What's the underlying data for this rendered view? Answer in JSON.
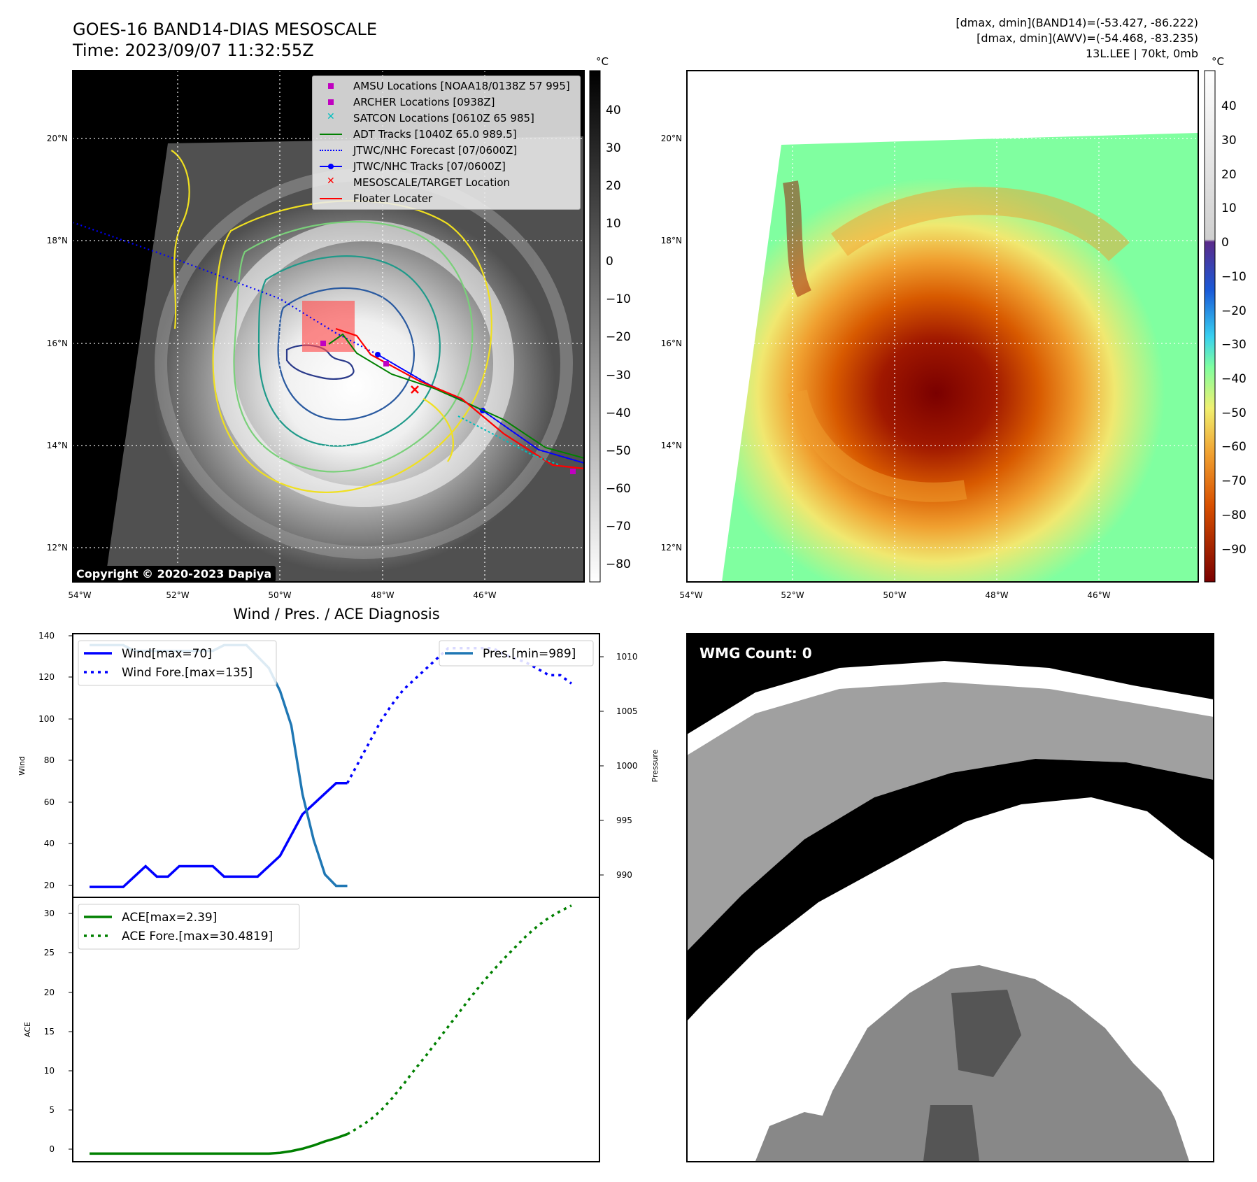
{
  "header": {
    "title_line1": "GOES-16 BAND14-DIAS MESOSCALE",
    "title_line2": "Time: 2023/09/07 11:32:55Z",
    "dmax_band14": "[dmax, dmin](BAND14)=(-53.427, -86.222)",
    "dmax_awv": "[dmax, dmin](AWV)=(-54.468, -83.235)",
    "storm_info": "13L.LEE | 70kt, 0mb"
  },
  "colors": {
    "wind": "#0000ff",
    "pressure": "#1f77b4",
    "ace": "#008000",
    "amsu": "#c000c0",
    "archer": "#c000c0",
    "satcon": "#00bfbf",
    "adt": "#008000",
    "jtwc": "#0000ff",
    "target": "#ff0000",
    "floater": "#ff0000"
  },
  "map_left": {
    "legend": [
      {
        "label": "AMSU Locations [NOAA18/0138Z 57 995]",
        "symbol": "square",
        "color": "#c000c0"
      },
      {
        "label": "ARCHER Locations [0938Z]",
        "symbol": "square",
        "color": "#c000c0"
      },
      {
        "label": "SATCON Locations [0610Z 65 985]",
        "symbol": "x",
        "color": "#00bfbf"
      },
      {
        "label": "ADT Tracks [1040Z 65.0 989.5]",
        "symbol": "line",
        "color": "#008000"
      },
      {
        "label": "JTWC/NHC Forecast [07/0600Z]",
        "symbol": "dotted",
        "color": "#0000ff"
      },
      {
        "label": "JTWC/NHC Tracks [07/0600Z]",
        "symbol": "line-dot",
        "color": "#0000ff"
      },
      {
        "label": "MESOSCALE/TARGET Location",
        "symbol": "x",
        "color": "#ff0000"
      },
      {
        "label": "Floater Locater",
        "symbol": "line",
        "color": "#ff0000"
      }
    ],
    "copyright": "Copyright © 2020-2023 Dapiya",
    "colorbar_unit": "°C",
    "colorbar_ticks": [
      "40",
      "30",
      "20",
      "10",
      "0",
      "−10",
      "−20",
      "−30",
      "−40",
      "−50",
      "−60",
      "−70",
      "−80"
    ],
    "lat_labels": [
      "20°N",
      "18°N",
      "16°N",
      "14°N",
      "12°N"
    ],
    "lon_labels": [
      "54°W",
      "52°W",
      "50°W",
      "48°W",
      "46°W"
    ]
  },
  "map_right": {
    "colorbar_unit": "°C",
    "colorbar_ticks": [
      "40",
      "30",
      "20",
      "10",
      "0",
      "−10",
      "−20",
      "−30",
      "−40",
      "−50",
      "−60",
      "−70",
      "−80",
      "−90"
    ],
    "lat_labels": [
      "20°N",
      "18°N",
      "16°N",
      "14°N",
      "12°N"
    ],
    "lon_labels": [
      "54°W",
      "52°W",
      "50°W",
      "48°W",
      "46°W"
    ]
  },
  "diagnosis": {
    "title": "Wind / Pres. / ACE Diagnosis",
    "wind_axis_label": "Wind",
    "pressure_axis_label": "Pressure",
    "ace_axis_label": "ACE",
    "wind_ticks": [
      "140",
      "120",
      "100",
      "80",
      "60",
      "40",
      "20"
    ],
    "pressure_ticks": [
      "1010",
      "1005",
      "1000",
      "995",
      "990"
    ],
    "ace_ticks": [
      "30",
      "25",
      "20",
      "15",
      "10",
      "5",
      "0"
    ],
    "legend_wind": "Wind[max=70]",
    "legend_wind_fore": "Wind Fore.[max=135]",
    "legend_pres": "Pres.[min=989]",
    "legend_ace": "ACE[max=2.39]",
    "legend_ace_fore": "ACE Fore.[max=30.4819]"
  },
  "wmg": {
    "label": "WMG Count: 0"
  },
  "chart_data": [
    {
      "type": "line",
      "title": "Wind / Pres. / ACE Diagnosis",
      "ylabel": "Wind",
      "ylim": [
        15,
        142
      ],
      "y2label": "Pressure",
      "y2lim": [
        988,
        1011
      ],
      "x": [
        0,
        1,
        2,
        3,
        4,
        5,
        6,
        7,
        8,
        9,
        10,
        11,
        12,
        13,
        14,
        15,
        16,
        17,
        18,
        19,
        20,
        21,
        22,
        23,
        24,
        25,
        26,
        27,
        28,
        29,
        30,
        31,
        32,
        33,
        34,
        35,
        36,
        37,
        38,
        39,
        40,
        41,
        42,
        43
      ],
      "series": [
        {
          "name": "Wind[max=70]",
          "style": "solid",
          "x": [
            0,
            1,
            2,
            3,
            4,
            5,
            6,
            7,
            8,
            9,
            10,
            11,
            12,
            13,
            14,
            15,
            16,
            17,
            18,
            19,
            20
          ],
          "values": [
            20,
            20,
            20,
            20,
            25,
            30,
            25,
            25,
            30,
            30,
            30,
            30,
            25,
            25,
            25,
            25,
            30,
            35,
            45,
            55,
            60
          ]
        },
        {
          "name": "Wind[max=70]",
          "style": "solid",
          "x": [
            20,
            21,
            22,
            23
          ],
          "values": [
            60,
            65,
            70,
            70
          ]
        },
        {
          "name": "Wind Fore.[max=135]",
          "style": "dotted",
          "x": [
            23,
            24,
            25,
            26,
            27,
            28,
            29,
            30,
            31,
            32,
            33,
            34,
            35,
            36,
            37,
            38,
            39,
            40,
            41,
            42,
            43
          ],
          "values": [
            70,
            80,
            90,
            100,
            108,
            115,
            120,
            125,
            130,
            135,
            135,
            135,
            135,
            135,
            132,
            130,
            128,
            125,
            122,
            122,
            118
          ]
        },
        {
          "name": "Pres.[min=989]",
          "style": "solid",
          "axis": "y2",
          "x": [
            0,
            1,
            2,
            3,
            4,
            5,
            6,
            7,
            8,
            9,
            10,
            11,
            12,
            13,
            14,
            15,
            16,
            17,
            18,
            19,
            20,
            21,
            22,
            23
          ],
          "values": [
            1010,
            1010,
            1010,
            1010,
            1009.5,
            1009.5,
            1009.5,
            1009.5,
            1009.5,
            1009.5,
            1009.5,
            1009.5,
            1010,
            1010,
            1010,
            1009,
            1008,
            1006,
            1003,
            997,
            993,
            990,
            989,
            989
          ]
        }
      ]
    },
    {
      "type": "line",
      "ylabel": "ACE",
      "ylim": [
        -1,
        31.5
      ],
      "series": [
        {
          "name": "ACE[max=2.39]",
          "style": "solid",
          "x": [
            0,
            2,
            4,
            6,
            8,
            10,
            12,
            14,
            16,
            17,
            18,
            19,
            20,
            21,
            22,
            23
          ],
          "values": [
            0,
            0,
            0,
            0,
            0,
            0,
            0,
            0,
            0,
            0.1,
            0.3,
            0.6,
            1.0,
            1.5,
            1.9,
            2.39
          ]
        },
        {
          "name": "ACE Fore.[max=30.4819]",
          "style": "dotted",
          "x": [
            23,
            24,
            25,
            26,
            27,
            28,
            29,
            30,
            31,
            32,
            33,
            34,
            35,
            36,
            37,
            38,
            39,
            40,
            41,
            42,
            43
          ],
          "values": [
            2.39,
            3.2,
            4.1,
            5.3,
            6.8,
            8.5,
            10.3,
            12.0,
            13.8,
            15.6,
            17.4,
            19.2,
            20.9,
            22.5,
            24.0,
            25.4,
            26.8,
            28.0,
            29.0,
            29.8,
            30.4819
          ]
        }
      ]
    }
  ]
}
